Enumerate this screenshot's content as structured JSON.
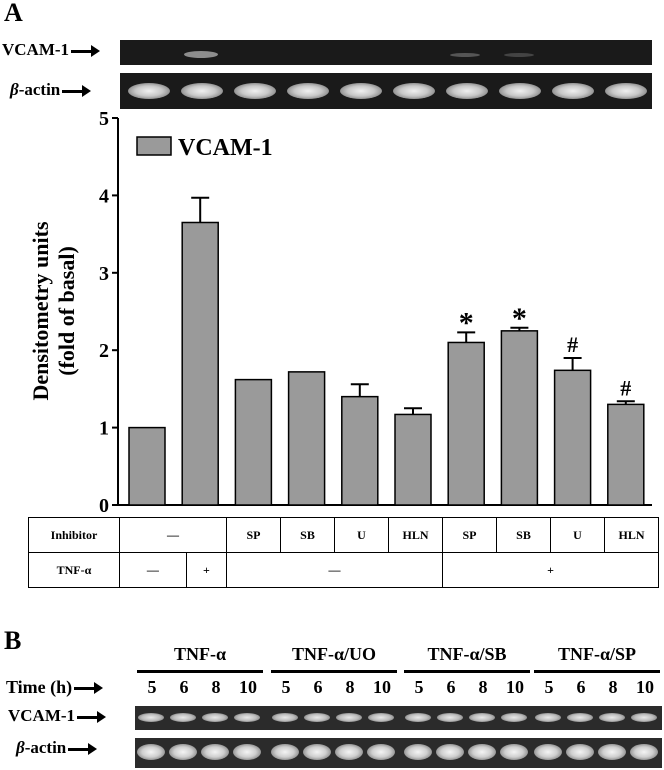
{
  "panel_a": {
    "letter": "A",
    "gel_labels": {
      "vcam": "VCAM-1",
      "actin_symbol": "β",
      "actin_text": "-actin"
    },
    "table": {
      "row1_header": "Inhibitor",
      "row2_header": "TNF-α",
      "inhibitor_cells": [
        "—",
        "SP",
        "SB",
        "U",
        "HLN",
        "SP",
        "SB",
        "U",
        "HLN"
      ],
      "tnf_cells": [
        "—",
        "+",
        "—",
        "+"
      ]
    }
  },
  "chart_data": {
    "type": "bar",
    "title": "",
    "ylabel": "Densitometry units (fold of basal)",
    "ylabel_lines": [
      "Densitometry units",
      "(fold of basal)"
    ],
    "xlabel": "",
    "ylim": [
      0,
      5
    ],
    "yticks": [
      0,
      1,
      2,
      3,
      4,
      5
    ],
    "legend": {
      "label": "VCAM-1",
      "position": "top-left"
    },
    "bar_color": "#9a9a9a",
    "series": [
      {
        "name": "VCAM-1",
        "values": [
          1.0,
          3.65,
          1.62,
          1.72,
          1.4,
          1.17,
          2.1,
          2.25,
          1.74,
          1.3
        ],
        "errors": [
          0,
          0.32,
          0,
          0,
          0.16,
          0.08,
          0.13,
          0.04,
          0.16,
          0.04
        ],
        "annotations": [
          "",
          "",
          "",
          "",
          "",
          "",
          "*",
          "*",
          "#",
          "#"
        ]
      }
    ]
  },
  "panel_b": {
    "letter": "B",
    "time_label": "Time (h)",
    "groups": [
      {
        "label": "TNF-α",
        "times": [
          "5",
          "6",
          "8",
          "10"
        ]
      },
      {
        "label": "TNF-α/UO",
        "times": [
          "5",
          "6",
          "8",
          "10"
        ]
      },
      {
        "label": "TNF-α/SB",
        "times": [
          "5",
          "6",
          "8",
          "10"
        ]
      },
      {
        "label": "TNF-α/SP",
        "times": [
          "5",
          "6",
          "8",
          "10"
        ]
      }
    ],
    "gel_labels": {
      "vcam": "VCAM-1",
      "actin_symbol": "β",
      "actin_text": "-actin"
    }
  }
}
